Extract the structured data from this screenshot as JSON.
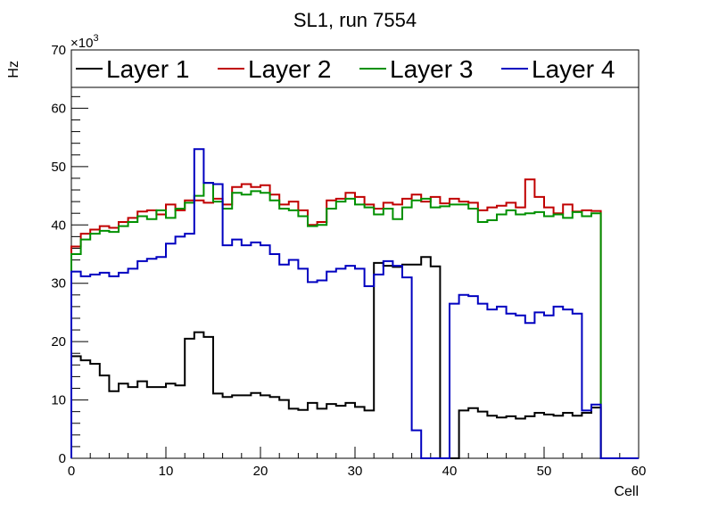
{
  "chart_data": {
    "type": "line",
    "title": "SL1, run 7554",
    "xlabel": "Cell",
    "ylabel": "Hz",
    "y_exponent_label": "×10",
    "y_exponent_power": "3",
    "xlim": [
      0,
      60
    ],
    "ylim": [
      0,
      70
    ],
    "x_ticks": [
      0,
      10,
      20,
      30,
      40,
      50,
      60
    ],
    "y_ticks": [
      0,
      10,
      20,
      30,
      40,
      50,
      60,
      70
    ],
    "grid": false,
    "legend_position": "top",
    "x_bin_edges_start": 0,
    "x_bin_width": 1,
    "series": [
      {
        "name": "Layer 1",
        "color": "#000000",
        "values": [
          17.5,
          16.8,
          16.2,
          14.2,
          11.5,
          12.8,
          12.2,
          13.2,
          12.2,
          12.2,
          12.8,
          12.5,
          20.5,
          21.6,
          20.8,
          11.1,
          10.5,
          10.8,
          10.8,
          11.2,
          10.8,
          10.5,
          10.0,
          8.5,
          8.3,
          9.5,
          8.5,
          9.3,
          9.0,
          9.5,
          8.8,
          8.2,
          33.5,
          33.0,
          32.8,
          33.2,
          33.2,
          34.5,
          32.9,
          0.0,
          0.0,
          8.2,
          8.6,
          8.0,
          7.3,
          7.0,
          7.2,
          6.8,
          7.2,
          7.8,
          7.5,
          7.3,
          7.8,
          7.3,
          7.8,
          8.7,
          0.0,
          0.0,
          0.0,
          0.0
        ]
      },
      {
        "name": "Layer 2",
        "color": "#c00000",
        "values": [
          36.3,
          38.5,
          39.2,
          39.8,
          39.5,
          40.5,
          41.2,
          42.3,
          42.5,
          41.8,
          43.5,
          42.5,
          44.2,
          44.2,
          43.8,
          44.5,
          43.5,
          46.5,
          47.0,
          46.5,
          46.8,
          45.2,
          43.5,
          44.0,
          42.5,
          40.0,
          40.5,
          44.2,
          44.5,
          45.5,
          44.8,
          43.5,
          42.8,
          43.8,
          43.5,
          44.5,
          45.2,
          44.0,
          44.8,
          43.7,
          44.5,
          44.0,
          43.8,
          42.5,
          43.0,
          43.3,
          43.8,
          43.0,
          47.8,
          44.8,
          43.0,
          42.0,
          43.5,
          42.3,
          42.5,
          42.4,
          0.0,
          0.0,
          0.0,
          0.0
        ]
      },
      {
        "name": "Layer 3",
        "color": "#009000",
        "values": [
          35.0,
          37.5,
          38.5,
          39.0,
          38.8,
          39.8,
          40.5,
          41.5,
          41.0,
          42.5,
          41.2,
          42.8,
          43.8,
          45.0,
          47.2,
          44.0,
          42.8,
          45.5,
          45.2,
          45.8,
          45.5,
          44.2,
          42.8,
          42.5,
          41.5,
          39.8,
          40.0,
          42.8,
          44.0,
          44.5,
          43.5,
          43.0,
          41.8,
          42.8,
          41.0,
          43.0,
          44.2,
          44.5,
          43.0,
          43.2,
          43.5,
          43.5,
          42.8,
          40.5,
          40.8,
          41.8,
          42.5,
          41.8,
          42.0,
          42.2,
          41.5,
          41.8,
          41.2,
          42.2,
          41.5,
          42.0,
          0.0,
          0.0,
          0.0,
          0.0
        ]
      },
      {
        "name": "Layer 4",
        "color": "#0000c0",
        "values": [
          32.0,
          31.2,
          31.5,
          31.8,
          31.2,
          31.8,
          32.5,
          33.8,
          34.2,
          34.5,
          36.8,
          38.0,
          38.5,
          53.0,
          47.2,
          47.0,
          36.5,
          37.5,
          36.5,
          37.0,
          36.5,
          35.0,
          33.2,
          34.0,
          32.5,
          30.2,
          30.5,
          32.0,
          32.5,
          33.0,
          32.5,
          29.5,
          31.5,
          33.8,
          33.0,
          31.0,
          4.8,
          0.0,
          0.0,
          0.0,
          26.5,
          28.0,
          27.8,
          26.5,
          25.5,
          26.0,
          24.8,
          24.5,
          23.2,
          25.0,
          24.5,
          26.0,
          25.5,
          24.8,
          8.2,
          9.2,
          0.0,
          0.0,
          0.0,
          0.0
        ]
      }
    ]
  }
}
